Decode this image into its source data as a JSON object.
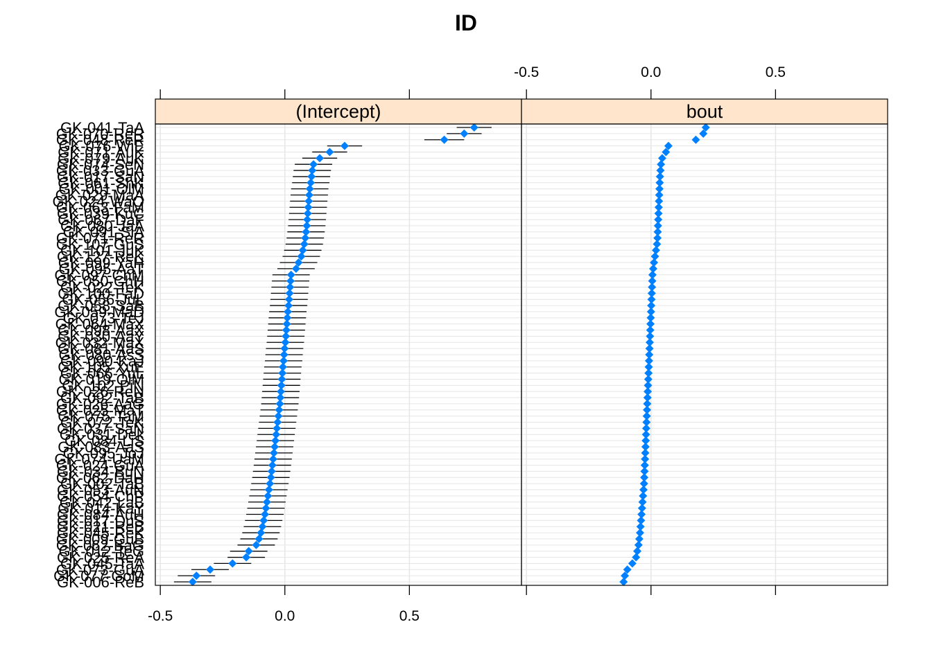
{
  "chart_data": {
    "type": "dotplot-with-intervals",
    "title": "ID",
    "panels": [
      "(Intercept)",
      "bout"
    ],
    "x_ticks": [
      -0.5,
      0.0,
      0.5
    ],
    "x_tick_labels": [
      "-0.5",
      "0.0",
      "0.5"
    ],
    "xlim": [
      -0.52,
      0.95
    ],
    "grid": true,
    "point_color": "#0080ff",
    "strip_color": "#ffe5cc",
    "row_labels": [
      "GK-041-TaA",
      "GK-070-ReR",
      "GK-048-ReR",
      "GK-076-WiE",
      "GK-071-AuK",
      "GK-079-AuK",
      "GK-074-SeN",
      "GK-033-GuA",
      "GK-017-SaN",
      "GK-061-ShK",
      "GK-001-OlM",
      "GK-029-MaA",
      "GK-024-WaO",
      "GK-063-FaM",
      "GK-039-KuC",
      "GK-067-DaF",
      "GK-080-JaA",
      "GK-091-SiA",
      "GK-071-ReR",
      "GK-107-GuS",
      "GK-101-JuK",
      "GK-127-ReK",
      "GK-099-YaH",
      "GK-095-AaT",
      "GK-097-ChM",
      "GK-050-ChH",
      "GK-022-TeK",
      "GK-100-FaD",
      "GK-056-JuL",
      "GK-058-SaB",
      "GK-059-MaD",
      "GK-073-TeJ",
      "GK-064-MaX",
      "GK-098-AaX",
      "GK-030-AaY",
      "GK-032-MaX",
      "GK-081-AaS",
      "GK-080-AsS",
      "GK-090-KaJ",
      "GK-105-XuE",
      "GK-066-YuL",
      "GK-019-OlM",
      "GK-102-PiN",
      "GK-026-ReN",
      "GK-092-TaB",
      "GK-026-AaG",
      "GK-025-MaT",
      "GK-075-TaM",
      "GK-072-TeK",
      "GK-037-SaN",
      "GK-031-Dek",
      "GK-084-LiS",
      "GK-083-AaS",
      "GK-095-JoJ",
      "GK-074-UaM",
      "GK-024-GuA",
      "GK-034-BuN",
      "GK-062-DaH",
      "GK-002-TaB",
      "GK-053-AuN",
      "GK-054-ChP",
      "GK-042-LaB",
      "GK-014-KaY",
      "GK-084-AuH",
      "GK-017-DuS",
      "GK-021-ReB",
      "GK-045-ReK",
      "GK-009-GuB",
      "GK-062-BaG",
      "GK-012-TeG",
      "GK-025-ReA",
      "GK-045-TaA",
      "GK-073-GuA",
      "GK-077-GoM",
      "GK-006-ReB"
    ],
    "series": [
      {
        "name": "(Intercept)",
        "values": [
          0.76,
          0.72,
          0.64,
          0.24,
          0.18,
          0.14,
          0.115,
          0.11,
          0.107,
          0.104,
          0.1,
          0.098,
          0.096,
          0.094,
          0.092,
          0.09,
          0.088,
          0.085,
          0.082,
          0.078,
          0.072,
          0.066,
          0.055,
          0.045,
          0.025,
          0.023,
          0.021,
          0.019,
          0.017,
          0.015,
          0.012,
          0.01,
          0.008,
          0.006,
          0.004,
          0.002,
          -0.001,
          -0.003,
          -0.005,
          -0.008,
          -0.01,
          -0.012,
          -0.014,
          -0.016,
          -0.018,
          -0.02,
          -0.023,
          -0.026,
          -0.029,
          -0.032,
          -0.035,
          -0.038,
          -0.041,
          -0.044,
          -0.047,
          -0.05,
          -0.053,
          -0.056,
          -0.06,
          -0.064,
          -0.068,
          -0.072,
          -0.076,
          -0.08,
          -0.085,
          -0.09,
          -0.096,
          -0.104,
          -0.115,
          -0.145,
          -0.155,
          -0.21,
          -0.3,
          -0.355,
          -0.37
        ],
        "lower": [
          0.69,
          0.65,
          0.56,
          0.17,
          0.11,
          0.07,
          0.04,
          0.035,
          0.032,
          0.029,
          0.025,
          0.023,
          0.021,
          0.019,
          0.017,
          0.015,
          0.013,
          0.01,
          0.007,
          0.003,
          -0.003,
          -0.009,
          -0.02,
          -0.03,
          -0.05,
          -0.052,
          -0.054,
          -0.056,
          -0.058,
          -0.06,
          -0.063,
          -0.065,
          -0.067,
          -0.069,
          -0.071,
          -0.073,
          -0.076,
          -0.078,
          -0.08,
          -0.083,
          -0.085,
          -0.087,
          -0.089,
          -0.091,
          -0.093,
          -0.095,
          -0.098,
          -0.101,
          -0.104,
          -0.107,
          -0.11,
          -0.113,
          -0.116,
          -0.119,
          -0.122,
          -0.125,
          -0.128,
          -0.131,
          -0.135,
          -0.139,
          -0.143,
          -0.147,
          -0.151,
          -0.155,
          -0.16,
          -0.165,
          -0.171,
          -0.179,
          -0.19,
          -0.22,
          -0.23,
          -0.285,
          -0.375,
          -0.43,
          -0.445
        ],
        "upper": [
          0.83,
          0.79,
          0.72,
          0.31,
          0.25,
          0.21,
          0.19,
          0.185,
          0.182,
          0.179,
          0.175,
          0.173,
          0.171,
          0.169,
          0.167,
          0.165,
          0.163,
          0.16,
          0.157,
          0.153,
          0.147,
          0.141,
          0.13,
          0.12,
          0.1,
          0.098,
          0.096,
          0.094,
          0.092,
          0.09,
          0.087,
          0.085,
          0.083,
          0.081,
          0.079,
          0.077,
          0.074,
          0.072,
          0.07,
          0.067,
          0.065,
          0.063,
          0.061,
          0.059,
          0.057,
          0.055,
          0.052,
          0.049,
          0.046,
          0.043,
          0.04,
          0.037,
          0.034,
          0.031,
          0.028,
          0.025,
          0.022,
          0.019,
          0.015,
          0.011,
          0.007,
          0.003,
          -0.001,
          -0.005,
          -0.01,
          -0.015,
          -0.021,
          -0.029,
          -0.04,
          -0.07,
          -0.08,
          -0.135,
          -0.225,
          -0.28,
          -0.295
        ]
      },
      {
        "name": "bout",
        "values": [
          0.22,
          0.21,
          0.18,
          0.07,
          0.06,
          0.045,
          0.04,
          0.038,
          0.036,
          0.035,
          0.034,
          0.033,
          0.032,
          0.031,
          0.03,
          0.029,
          0.028,
          0.027,
          0.026,
          0.024,
          0.02,
          0.016,
          0.012,
          0.009,
          0.006,
          0.005,
          0.004,
          0.003,
          0.002,
          0.001,
          0.0,
          -0.001,
          -0.002,
          -0.003,
          -0.004,
          -0.005,
          -0.006,
          -0.007,
          -0.008,
          -0.009,
          -0.01,
          -0.011,
          -0.012,
          -0.013,
          -0.014,
          -0.015,
          -0.016,
          -0.017,
          -0.018,
          -0.019,
          -0.02,
          -0.021,
          -0.022,
          -0.023,
          -0.024,
          -0.025,
          -0.026,
          -0.027,
          -0.028,
          -0.03,
          -0.032,
          -0.034,
          -0.036,
          -0.038,
          -0.04,
          -0.042,
          -0.044,
          -0.047,
          -0.05,
          -0.055,
          -0.06,
          -0.075,
          -0.095,
          -0.105,
          -0.11
        ],
        "lower": [
          0.21,
          0.2,
          0.17,
          0.06,
          0.05,
          0.035,
          0.03,
          0.028,
          0.026,
          0.025,
          0.024,
          0.023,
          0.022,
          0.021,
          0.02,
          0.019,
          0.018,
          0.017,
          0.016,
          0.014,
          0.01,
          0.006,
          0.002,
          -0.001,
          -0.004,
          -0.005,
          -0.006,
          -0.007,
          -0.008,
          -0.009,
          -0.01,
          -0.011,
          -0.012,
          -0.013,
          -0.014,
          -0.015,
          -0.016,
          -0.017,
          -0.018,
          -0.019,
          -0.02,
          -0.021,
          -0.022,
          -0.023,
          -0.024,
          -0.025,
          -0.026,
          -0.027,
          -0.028,
          -0.029,
          -0.03,
          -0.031,
          -0.032,
          -0.033,
          -0.034,
          -0.035,
          -0.036,
          -0.037,
          -0.038,
          -0.04,
          -0.042,
          -0.044,
          -0.046,
          -0.048,
          -0.05,
          -0.052,
          -0.054,
          -0.057,
          -0.06,
          -0.065,
          -0.07,
          -0.085,
          -0.105,
          -0.115,
          -0.12
        ],
        "upper": [
          0.23,
          0.22,
          0.19,
          0.08,
          0.07,
          0.055,
          0.05,
          0.048,
          0.046,
          0.045,
          0.044,
          0.043,
          0.042,
          0.041,
          0.04,
          0.039,
          0.038,
          0.037,
          0.036,
          0.034,
          0.03,
          0.026,
          0.022,
          0.019,
          0.016,
          0.015,
          0.014,
          0.013,
          0.012,
          0.011,
          0.01,
          0.009,
          0.008,
          0.007,
          0.006,
          0.005,
          0.004,
          0.003,
          0.002,
          0.001,
          0.0,
          -0.001,
          -0.002,
          -0.003,
          -0.004,
          -0.005,
          -0.006,
          -0.007,
          -0.008,
          -0.009,
          -0.01,
          -0.011,
          -0.012,
          -0.013,
          -0.014,
          -0.015,
          -0.016,
          -0.017,
          -0.018,
          -0.02,
          -0.022,
          -0.024,
          -0.026,
          -0.028,
          -0.03,
          -0.032,
          -0.034,
          -0.037,
          -0.04,
          -0.045,
          -0.05,
          -0.065,
          -0.085,
          -0.095,
          -0.1
        ]
      }
    ]
  }
}
